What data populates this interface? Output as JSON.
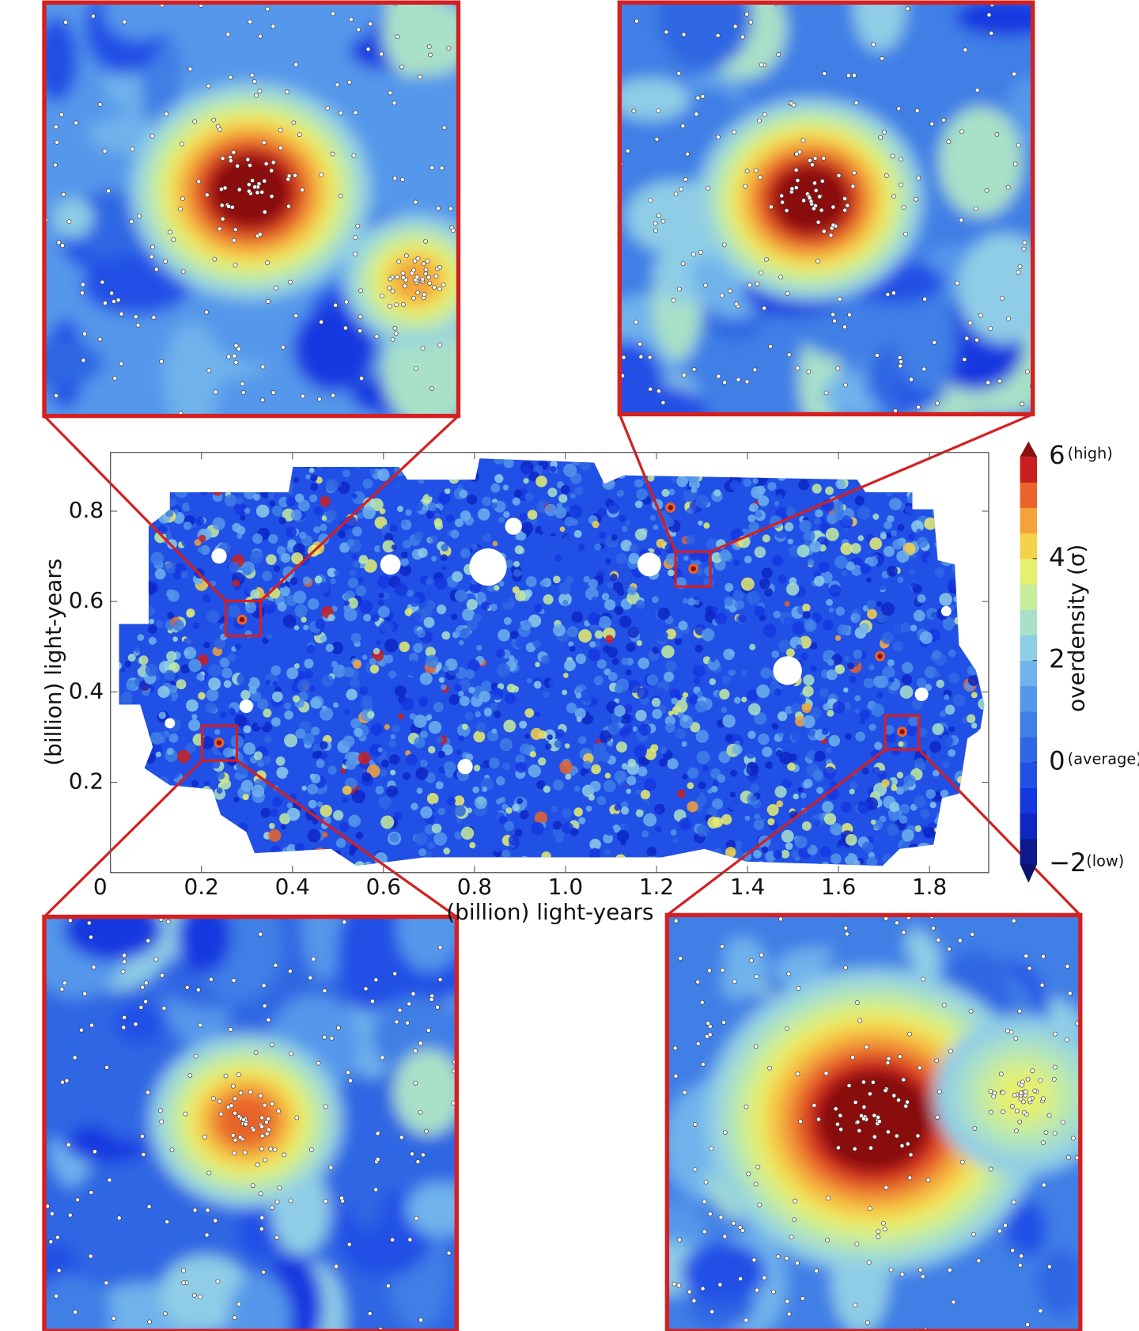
{
  "chart_data": {
    "type": "heatmap",
    "xlabel": "(billion) light-years",
    "ylabel": "(billion) light-years",
    "xlim": [
      0,
      1.93
    ],
    "ylim": [
      0,
      0.93
    ],
    "xticks": [
      0,
      0.2,
      0.4,
      0.6,
      0.8,
      {
        "value": 1,
        "label": "1.0"
      },
      1.2,
      1.4,
      1.6,
      1.8
    ],
    "yticks": [
      0.2,
      0.4,
      0.6,
      0.8
    ],
    "colorbar": {
      "label": "overdensity (σ)",
      "lim": [
        -2,
        6
      ],
      "ticks": [
        6,
        4,
        2,
        0,
        {
          "value": -2,
          "label": "−2"
        }
      ],
      "notes": [
        {
          "value": 6,
          "text": "(high)"
        },
        {
          "value": 0,
          "text": "(average)"
        },
        {
          "value": -2,
          "text": "(low)"
        }
      ],
      "colors": [
        "#0b1a8c",
        "#0d26c4",
        "#1437e0",
        "#2150e6",
        "#2f66e3",
        "#3f7fe6",
        "#5597ea",
        "#6fb2ec",
        "#8fcde6",
        "#a9e0c8",
        "#c6ec9c",
        "#e6ef6e",
        "#f6d24a",
        "#f3a33a",
        "#e8642a",
        "#c81e1e"
      ],
      "over_color": "#8a0f0f",
      "under_color": "#0a1470"
    },
    "highlight_color": "#d42020"
  }
}
